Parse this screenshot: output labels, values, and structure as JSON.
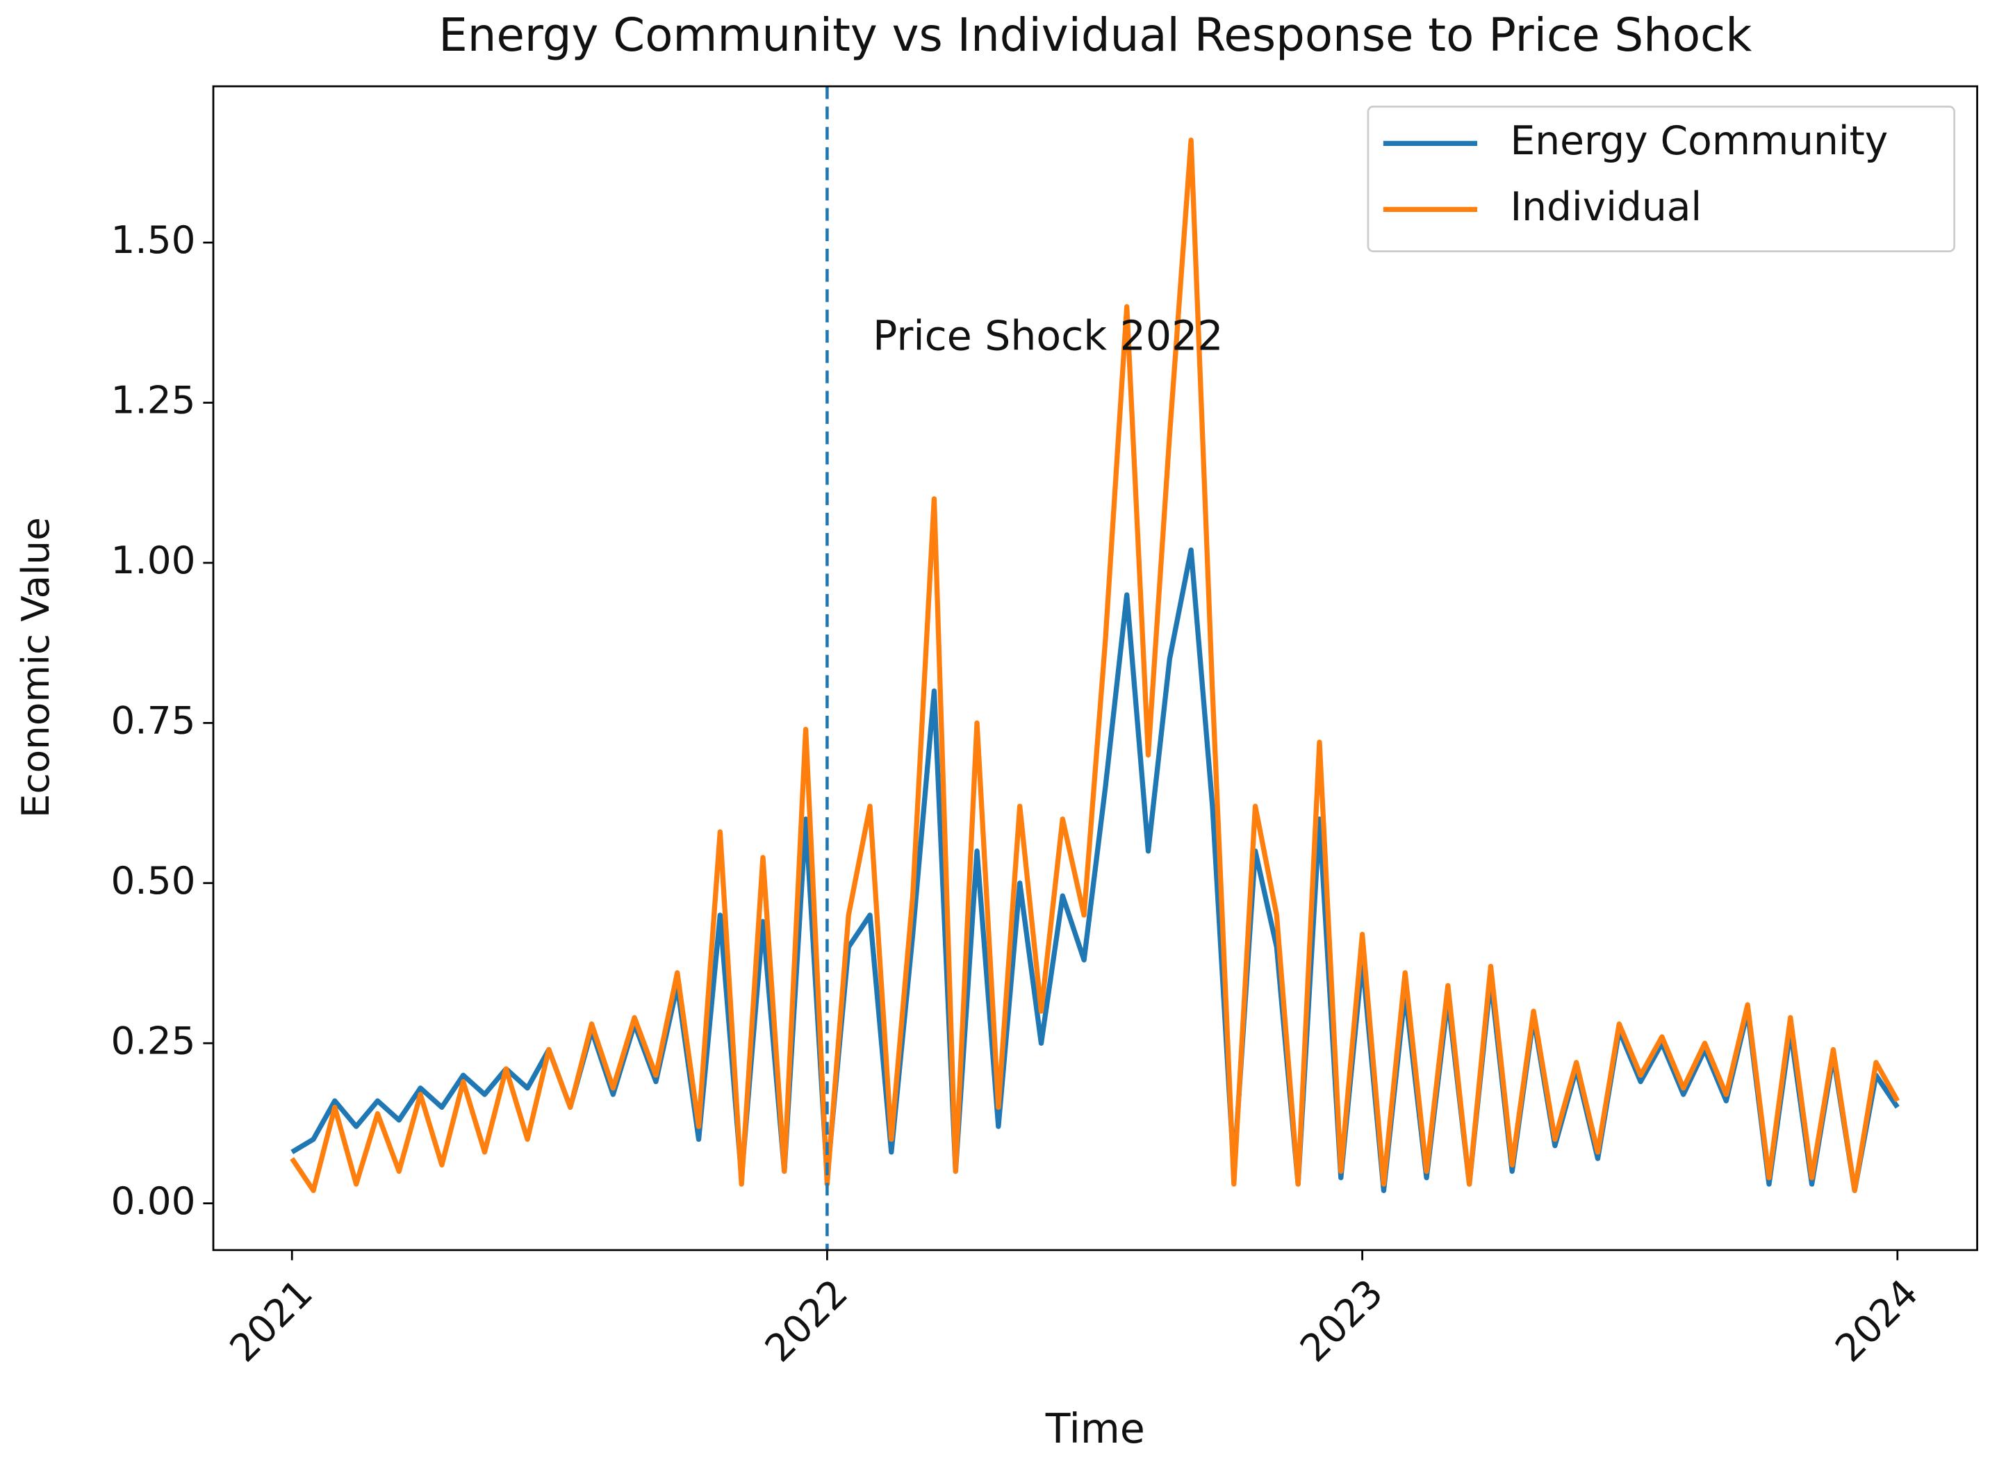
{
  "chart_data": {
    "type": "line",
    "title": "Energy Community vs Individual Response to Price Shock",
    "xlabel": "Time",
    "ylabel": "Economic Value",
    "x": [
      2021.0,
      2021.04,
      2021.08,
      2021.12,
      2021.16,
      2021.2,
      2021.24,
      2021.28,
      2021.32,
      2021.36,
      2021.4,
      2021.44,
      2021.48,
      2021.52,
      2021.56,
      2021.6,
      2021.64,
      2021.68,
      2021.72,
      2021.76,
      2021.8,
      2021.84,
      2021.88,
      2021.92,
      2021.96,
      2022.0,
      2022.04,
      2022.08,
      2022.12,
      2022.16,
      2022.2,
      2022.24,
      2022.28,
      2022.32,
      2022.36,
      2022.4,
      2022.44,
      2022.48,
      2022.52,
      2022.56,
      2022.6,
      2022.64,
      2022.68,
      2022.72,
      2022.76,
      2022.8,
      2022.84,
      2022.88,
      2022.92,
      2022.96,
      2023.0,
      2023.04,
      2023.08,
      2023.12,
      2023.16,
      2023.2,
      2023.24,
      2023.28,
      2023.32,
      2023.36,
      2023.4,
      2023.44,
      2023.48,
      2023.52,
      2023.56,
      2023.6,
      2023.64,
      2023.68,
      2023.72,
      2023.76,
      2023.8,
      2023.84,
      2023.88,
      2023.92,
      2023.96,
      2024.0
    ],
    "series": [
      {
        "name": "Energy Community",
        "color": "#1f77b4",
        "values": [
          0.08,
          0.1,
          0.16,
          0.12,
          0.16,
          0.13,
          0.18,
          0.15,
          0.2,
          0.17,
          0.21,
          0.18,
          0.24,
          0.15,
          0.27,
          0.17,
          0.28,
          0.19,
          0.34,
          0.1,
          0.45,
          0.04,
          0.44,
          0.05,
          0.6,
          0.04,
          0.4,
          0.45,
          0.08,
          0.42,
          0.8,
          0.05,
          0.55,
          0.12,
          0.5,
          0.25,
          0.48,
          0.38,
          0.65,
          0.95,
          0.55,
          0.85,
          1.02,
          0.62,
          0.05,
          0.55,
          0.4,
          0.03,
          0.6,
          0.04,
          0.38,
          0.02,
          0.33,
          0.04,
          0.32,
          0.03,
          0.35,
          0.05,
          0.29,
          0.09,
          0.21,
          0.07,
          0.27,
          0.19,
          0.25,
          0.17,
          0.24,
          0.16,
          0.3,
          0.03,
          0.27,
          0.03,
          0.23,
          0.02,
          0.2,
          0.15
        ]
      },
      {
        "name": "Individual",
        "color": "#ff7f0e",
        "values": [
          0.07,
          0.02,
          0.15,
          0.03,
          0.14,
          0.05,
          0.17,
          0.06,
          0.19,
          0.08,
          0.21,
          0.1,
          0.24,
          0.15,
          0.28,
          0.18,
          0.29,
          0.2,
          0.36,
          0.12,
          0.58,
          0.03,
          0.54,
          0.05,
          0.74,
          0.03,
          0.45,
          0.62,
          0.1,
          0.48,
          1.1,
          0.05,
          0.75,
          0.15,
          0.62,
          0.3,
          0.6,
          0.45,
          0.88,
          1.4,
          0.7,
          1.2,
          1.66,
          0.8,
          0.03,
          0.62,
          0.45,
          0.03,
          0.72,
          0.05,
          0.42,
          0.03,
          0.36,
          0.05,
          0.34,
          0.03,
          0.37,
          0.06,
          0.3,
          0.1,
          0.22,
          0.08,
          0.28,
          0.2,
          0.26,
          0.18,
          0.25,
          0.17,
          0.31,
          0.04,
          0.29,
          0.04,
          0.24,
          0.02,
          0.22,
          0.16
        ]
      }
    ],
    "xlim": [
      2020.853,
      2024.149
    ],
    "xticks": [
      2021,
      2022,
      2023,
      2024
    ],
    "ylim": [
      -0.073,
      1.744
    ],
    "yticks": [
      {
        "value": 0,
        "label": "0.00"
      },
      {
        "value": 0.25,
        "label": "0.25"
      },
      {
        "value": 0.5,
        "label": "0.50"
      },
      {
        "value": 0.75,
        "label": "0.75"
      },
      {
        "value": 1,
        "label": "1.00"
      },
      {
        "value": 1.25,
        "label": "1.25"
      },
      {
        "value": 1.5,
        "label": "1.50"
      }
    ],
    "vline": {
      "x": 2022,
      "color": "#1f77b4",
      "label": "Price Shock 2022",
      "label_y": 1.35
    },
    "legend": "upper right",
    "grid": false
  }
}
